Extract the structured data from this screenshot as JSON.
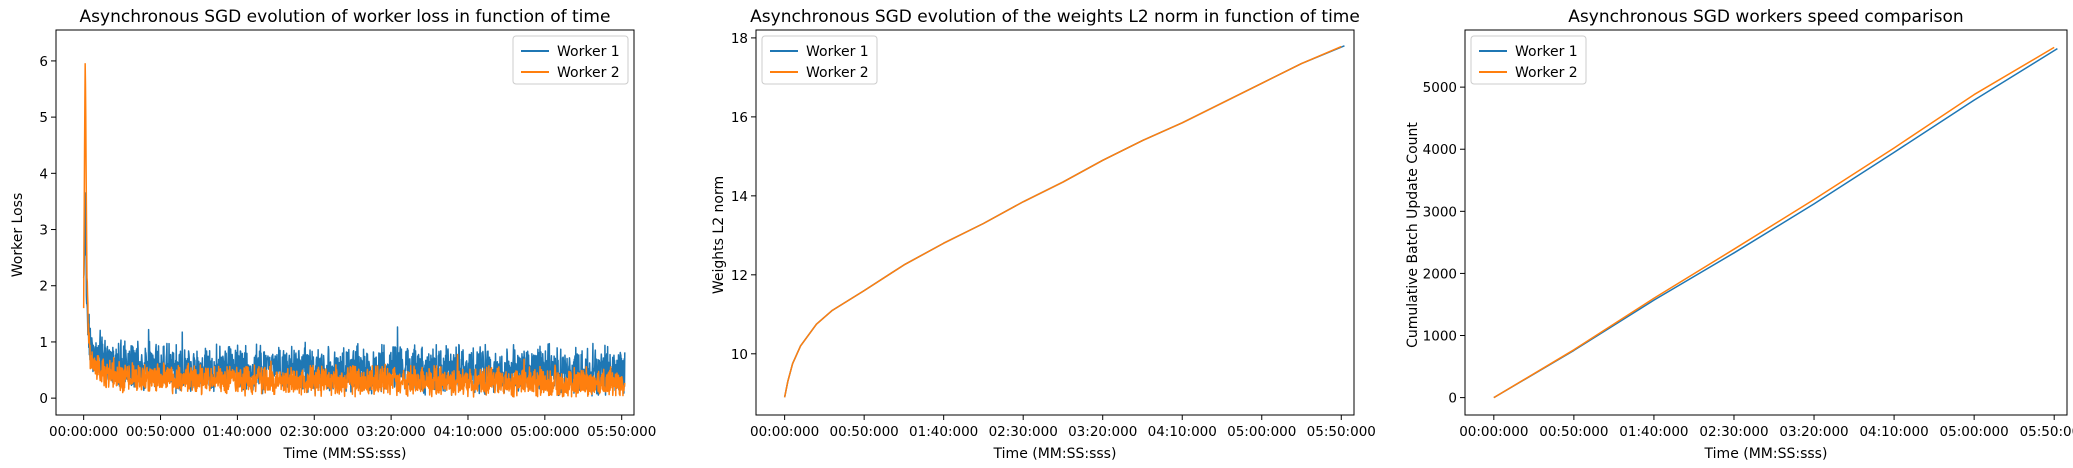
{
  "colors": {
    "worker1": "#1f77b4",
    "worker2": "#ff7f0e"
  },
  "chart_data": [
    {
      "type": "line",
      "title": "Asynchronous SGD evolution of worker loss in function of time",
      "xlabel": "Time (MM:SS:sss)",
      "ylabel": "Worker Loss",
      "x_tick_labels": [
        "00:00:000",
        "00:50:000",
        "01:40:000",
        "02:30:000",
        "03:20:000",
        "04:10:000",
        "05:00:000",
        "05:50:000"
      ],
      "y_ticks": [
        0,
        1,
        2,
        3,
        4,
        5,
        6
      ],
      "xlim": [
        -18,
        358
      ],
      "ylim": [
        -0.3,
        6.55
      ],
      "legend": "top-right",
      "series": [
        {
          "name": "Worker 1",
          "color": "#1f77b4",
          "noise_amp": 0.35,
          "x": [
            0,
            1,
            2,
            3,
            4,
            6,
            8,
            10,
            15,
            20,
            30,
            50,
            100,
            150,
            200,
            250,
            300,
            352
          ],
          "y": [
            2.0,
            3.5,
            1.6,
            1.3,
            1.0,
            0.8,
            0.75,
            0.7,
            0.62,
            0.58,
            0.55,
            0.52,
            0.5,
            0.48,
            0.47,
            0.46,
            0.45,
            0.44
          ]
        },
        {
          "name": "Worker 2",
          "color": "#ff7f0e",
          "noise_amp": 0.22,
          "x": [
            0,
            1,
            2,
            3,
            4,
            6,
            8,
            10,
            15,
            20,
            30,
            50,
            100,
            150,
            200,
            250,
            300,
            352
          ],
          "y": [
            1.8,
            6.2,
            2.5,
            1.2,
            0.8,
            0.6,
            0.5,
            0.45,
            0.4,
            0.37,
            0.35,
            0.33,
            0.3,
            0.28,
            0.27,
            0.26,
            0.25,
            0.24
          ]
        }
      ]
    },
    {
      "type": "line",
      "title": "Asynchronous SGD evolution of the weights L2 norm in function of time",
      "xlabel": "Time (MM:SS:sss)",
      "ylabel": "Weights L2 norm",
      "x_tick_labels": [
        "00:00:000",
        "00:50:000",
        "01:40:000",
        "02:30:000",
        "03:20:000",
        "04:10:000",
        "05:00:000",
        "05:50:000"
      ],
      "y_ticks": [
        10,
        12,
        14,
        16,
        18
      ],
      "xlim": [
        -18,
        358
      ],
      "ylim": [
        8.45,
        18.2
      ],
      "legend": "top-left",
      "series": [
        {
          "name": "Worker 1",
          "color": "#1f77b4",
          "x": [
            0,
            2,
            5,
            10,
            20,
            30,
            50,
            75,
            100,
            125,
            150,
            175,
            200,
            225,
            250,
            275,
            300,
            325,
            352
          ],
          "y": [
            8.9,
            9.3,
            9.75,
            10.2,
            10.75,
            11.1,
            11.6,
            12.25,
            12.8,
            13.3,
            13.85,
            14.35,
            14.9,
            15.4,
            15.85,
            16.35,
            16.85,
            17.35,
            17.8
          ]
        },
        {
          "name": "Worker 2",
          "color": "#ff7f0e",
          "x": [
            0,
            2,
            5,
            10,
            20,
            30,
            50,
            75,
            100,
            125,
            150,
            175,
            200,
            225,
            250,
            275,
            300,
            325,
            350
          ],
          "y": [
            8.9,
            9.3,
            9.75,
            10.2,
            10.75,
            11.1,
            11.6,
            12.25,
            12.8,
            13.3,
            13.85,
            14.35,
            14.9,
            15.4,
            15.85,
            16.35,
            16.85,
            17.35,
            17.78
          ]
        }
      ]
    },
    {
      "type": "line",
      "title": "Asynchronous SGD workers speed comparison",
      "xlabel": "Time (MM:SS:sss)",
      "ylabel": "Cumulative Batch Update Count",
      "x_tick_labels": [
        "00:00:000",
        "00:50:000",
        "01:40:000",
        "02:30:000",
        "03:20:000",
        "04:10:000",
        "05:00:000",
        "05:50:000"
      ],
      "y_ticks": [
        0,
        1000,
        2000,
        3000,
        4000,
        5000
      ],
      "xlim": [
        -18,
        358
      ],
      "ylim": [
        -280,
        5920
      ],
      "legend": "top-left",
      "series": [
        {
          "name": "Worker 1",
          "color": "#1f77b4",
          "x": [
            0,
            50,
            100,
            150,
            200,
            250,
            300,
            352
          ],
          "y": [
            0,
            760,
            1570,
            2330,
            3120,
            3950,
            4790,
            5620
          ]
        },
        {
          "name": "Worker 2",
          "color": "#ff7f0e",
          "x": [
            0,
            50,
            100,
            150,
            200,
            250,
            300,
            350
          ],
          "y": [
            0,
            770,
            1600,
            2390,
            3190,
            4020,
            4880,
            5640
          ]
        }
      ]
    }
  ]
}
